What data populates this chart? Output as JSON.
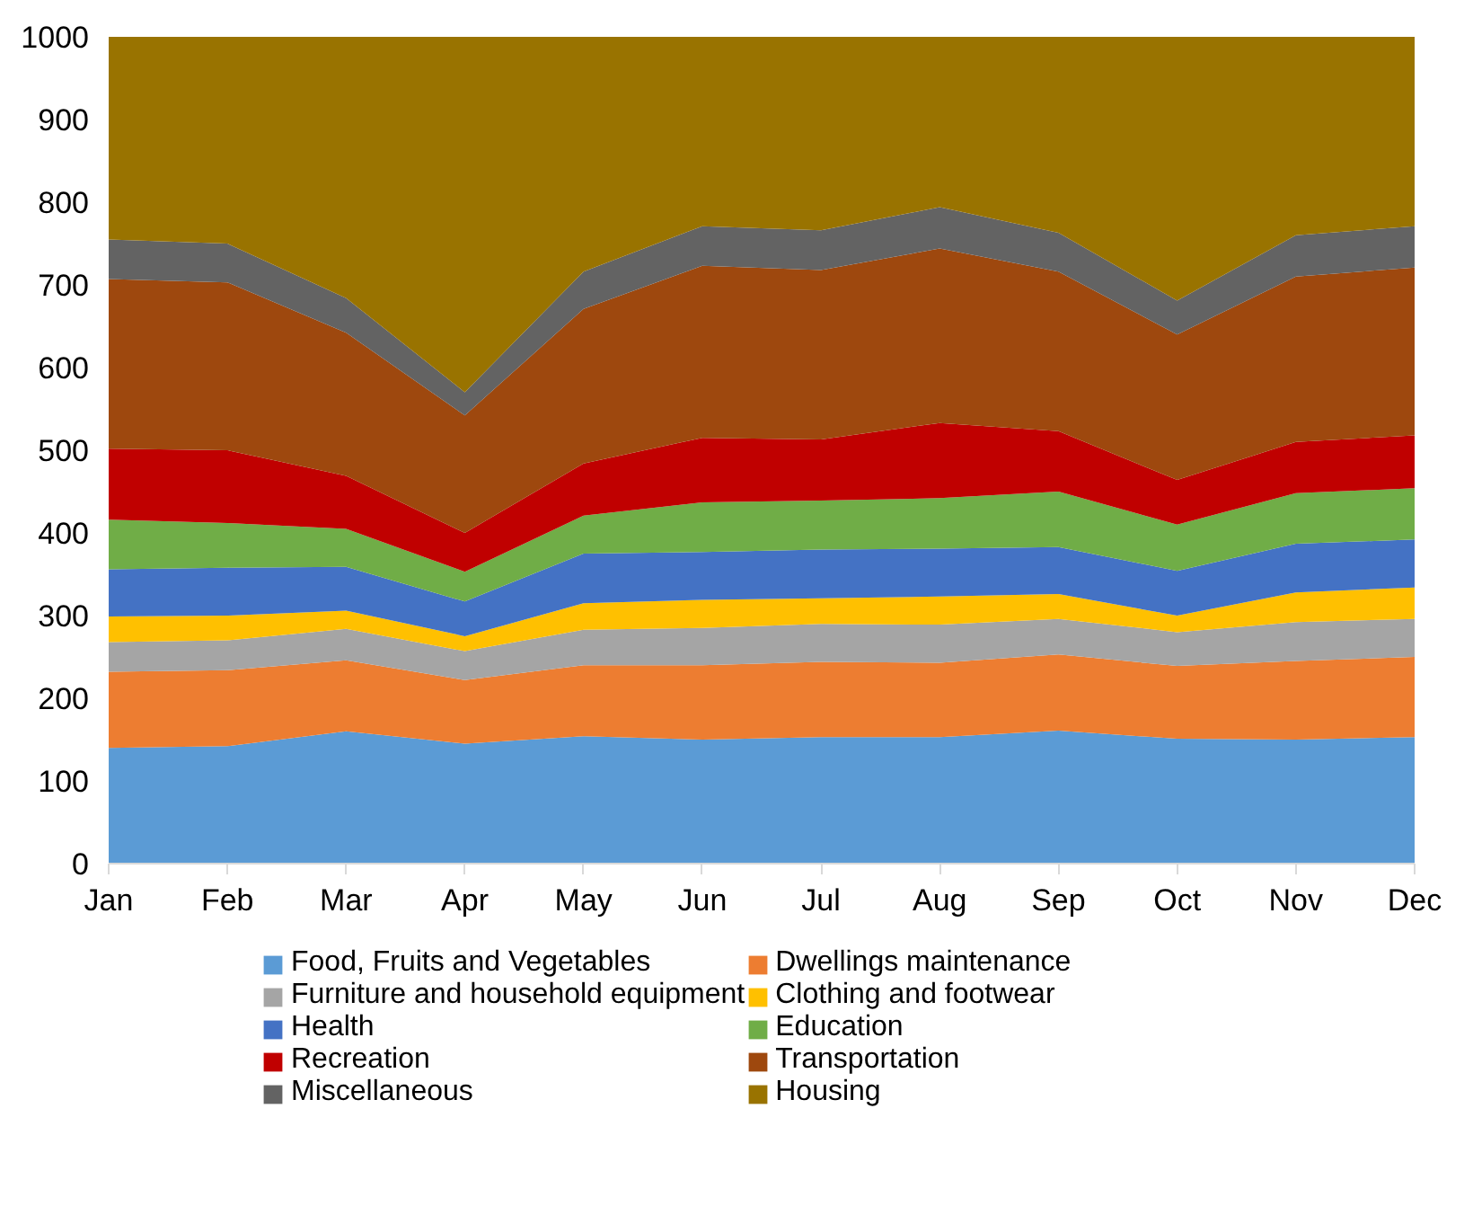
{
  "chart_data": {
    "type": "area",
    "stacked": true,
    "categories": [
      "Jan",
      "Feb",
      "Mar",
      "Apr",
      "May",
      "Jun",
      "Jul",
      "Aug",
      "Sep",
      "Oct",
      "Nov",
      "Dec"
    ],
    "ylim": [
      0,
      1000
    ],
    "yticks": [
      0,
      100,
      200,
      300,
      400,
      500,
      600,
      700,
      800,
      900,
      1000
    ],
    "grid": false,
    "legend": "bottom",
    "series": [
      {
        "name": "Food, Fruits and Vegetables",
        "color": "#5b9bd5",
        "values": [
          140,
          142,
          160,
          145,
          154,
          150,
          153,
          153,
          161,
          151,
          150,
          153
        ]
      },
      {
        "name": "Dwellings maintenance",
        "color": "#ed7d31",
        "values": [
          92,
          92,
          86,
          77,
          86,
          90,
          91,
          90,
          92,
          88,
          95,
          97
        ]
      },
      {
        "name": "Furniture and household equipment",
        "color": "#a5a5a5",
        "values": [
          36,
          36,
          38,
          35,
          43,
          45,
          46,
          46,
          43,
          41,
          47,
          46
        ]
      },
      {
        "name": "Clothing and footwear",
        "color": "#ffc000",
        "values": [
          31,
          30,
          22,
          18,
          32,
          34,
          31,
          34,
          30,
          20,
          36,
          38
        ]
      },
      {
        "name": "Health",
        "color": "#4472c4",
        "values": [
          57,
          58,
          53,
          42,
          60,
          58,
          59,
          58,
          57,
          54,
          59,
          58
        ]
      },
      {
        "name": "Education",
        "color": "#70ad47",
        "values": [
          60,
          54,
          46,
          36,
          46,
          60,
          59,
          61,
          67,
          56,
          61,
          62
        ]
      },
      {
        "name": "Recreation",
        "color": "#c00000",
        "values": [
          86,
          88,
          64,
          47,
          63,
          78,
          74,
          91,
          73,
          54,
          62,
          64
        ]
      },
      {
        "name": "Transportation",
        "color": "#9e480e",
        "values": [
          205,
          203,
          173,
          142,
          187,
          208,
          205,
          211,
          193,
          176,
          200,
          203
        ]
      },
      {
        "name": "Miscellaneous",
        "color": "#636363",
        "values": [
          48,
          47,
          42,
          28,
          45,
          48,
          48,
          50,
          47,
          41,
          50,
          50
        ]
      },
      {
        "name": "Housing",
        "color": "#997300",
        "values": [
          245,
          250,
          316,
          430,
          284,
          229,
          234,
          206,
          237,
          319,
          240,
          229
        ]
      }
    ]
  }
}
